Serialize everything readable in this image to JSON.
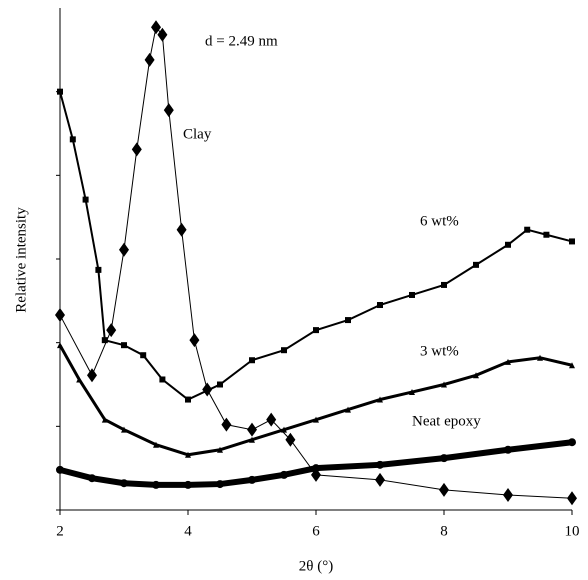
{
  "chart_data": {
    "type": "line",
    "xlabel": "2θ (°)",
    "ylabel": "Relative intensity",
    "xlim": [
      2,
      10
    ],
    "xticks": [
      2,
      4,
      6,
      8,
      10
    ],
    "ylim": [
      0,
      6
    ],
    "yticks": [
      0,
      1,
      2,
      3,
      4,
      5
    ],
    "annotations": [
      "d = 2.49 nm",
      "Clay",
      "6 wt%",
      "3 wt%",
      "Neat epoxy"
    ],
    "series": [
      {
        "name": "Clay",
        "color": "#000000",
        "marker": "diamond",
        "x": [
          2,
          2.5,
          2.8,
          3.0,
          3.2,
          3.4,
          3.5,
          3.6,
          3.7,
          3.9,
          4.1,
          4.3,
          4.6,
          5.0,
          5.3,
          5.6,
          6,
          7,
          8,
          9,
          10
        ],
        "values": [
          2.33,
          1.61,
          2.15,
          3.11,
          4.31,
          5.38,
          5.77,
          5.68,
          4.78,
          3.35,
          2.03,
          1.44,
          1.02,
          0.96,
          1.08,
          0.84,
          0.42,
          0.36,
          0.24,
          0.18,
          0.14
        ]
      },
      {
        "name": "6 wt%",
        "color": "#000000",
        "marker": "square",
        "x": [
          2,
          2.2,
          2.4,
          2.6,
          2.7,
          3.0,
          3.3,
          3.6,
          4.0,
          4.5,
          5,
          5.5,
          6,
          6.5,
          7,
          7.5,
          8,
          8.5,
          9,
          9.3,
          9.6,
          10
        ],
        "values": [
          5.0,
          4.43,
          3.71,
          2.87,
          2.03,
          1.97,
          1.85,
          1.56,
          1.32,
          1.5,
          1.79,
          1.91,
          2.15,
          2.27,
          2.45,
          2.57,
          2.69,
          2.93,
          3.17,
          3.35,
          3.29,
          3.21
        ]
      },
      {
        "name": "3 wt%",
        "color": "#000000",
        "marker": "triangle",
        "x": [
          2,
          2.3,
          2.7,
          3.0,
          3.5,
          4.0,
          4.5,
          5,
          5.5,
          6,
          6.5,
          7,
          7.5,
          8,
          8.5,
          9,
          9.5,
          10
        ],
        "values": [
          1.97,
          1.56,
          1.08,
          0.96,
          0.78,
          0.66,
          0.72,
          0.84,
          0.96,
          1.08,
          1.2,
          1.32,
          1.41,
          1.5,
          1.61,
          1.77,
          1.82,
          1.73
        ]
      },
      {
        "name": "Neat epoxy",
        "color": "#000000",
        "marker": "circle",
        "x": [
          2,
          2.5,
          3,
          3.5,
          4,
          4.5,
          5,
          5.5,
          6,
          7,
          8,
          9,
          10
        ],
        "values": [
          0.48,
          0.38,
          0.32,
          0.3,
          0.3,
          0.31,
          0.36,
          0.42,
          0.5,
          0.54,
          0.62,
          0.72,
          0.81
        ]
      }
    ]
  }
}
